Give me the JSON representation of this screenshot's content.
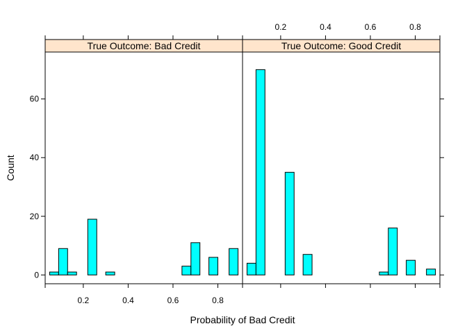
{
  "chart_data": {
    "type": "bar",
    "xlabel": "Probability of Bad Credit",
    "ylabel": "Count",
    "xlim": [
      0.03,
      0.91
    ],
    "ylim": [
      -3,
      76
    ],
    "bin_width": 0.04,
    "x_ticks": [
      "0.2",
      "0.4",
      "0.6",
      "0.8"
    ],
    "x_tick_values": [
      0.2,
      0.4,
      0.6,
      0.8
    ],
    "y_ticks": [
      "0",
      "20",
      "40",
      "60"
    ],
    "y_tick_values": [
      0,
      20,
      40,
      60
    ],
    "bar_color": "#00ffff",
    "strip_color": "#ffe5cc",
    "panels": [
      {
        "strip": "True Outcome: Bad Credit",
        "bins": [
          {
            "x": 0.07,
            "count": 1
          },
          {
            "x": 0.11,
            "count": 9
          },
          {
            "x": 0.15,
            "count": 1
          },
          {
            "x": 0.24,
            "count": 19
          },
          {
            "x": 0.32,
            "count": 1
          },
          {
            "x": 0.66,
            "count": 3
          },
          {
            "x": 0.7,
            "count": 11
          },
          {
            "x": 0.78,
            "count": 6
          },
          {
            "x": 0.87,
            "count": 9
          }
        ]
      },
      {
        "strip": "True Outcome: Good Credit",
        "bins": [
          {
            "x": 0.07,
            "count": 4
          },
          {
            "x": 0.11,
            "count": 70
          },
          {
            "x": 0.24,
            "count": 35
          },
          {
            "x": 0.32,
            "count": 7
          },
          {
            "x": 0.66,
            "count": 1
          },
          {
            "x": 0.7,
            "count": 16
          },
          {
            "x": 0.78,
            "count": 5
          },
          {
            "x": 0.87,
            "count": 2
          }
        ]
      }
    ]
  }
}
